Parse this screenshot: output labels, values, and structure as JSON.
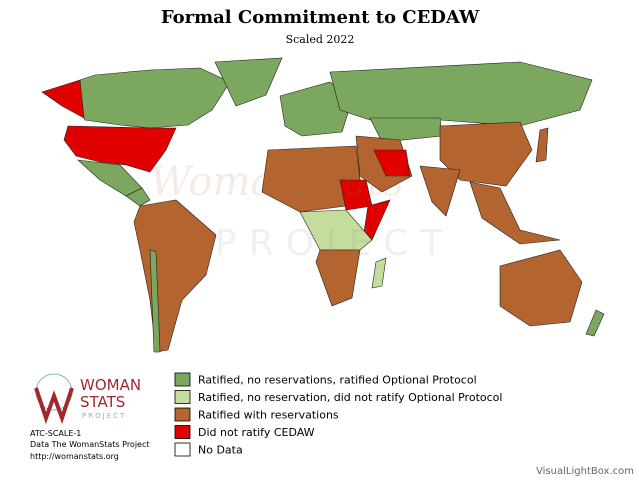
{
  "header": {
    "title": "Formal Commitment to CEDAW",
    "subtitle": "Scaled 2022"
  },
  "legend": {
    "items": [
      {
        "label": "Ratified, no reservations, ratified Optional Protocol",
        "color": "#7ba75f"
      },
      {
        "label": "Ratified, no reservation, did not ratify Optional Protocol",
        "color": "#c5dd9c"
      },
      {
        "label": "Ratified with reservations",
        "color": "#b3642f"
      },
      {
        "label": "Did not ratify CEDAW",
        "color": "#e00000"
      },
      {
        "label": "No Data",
        "color": "#ffffff"
      }
    ]
  },
  "logo": {
    "line1": "WOMAN",
    "line2": "STATS",
    "line3": "PROJECT"
  },
  "source": {
    "code": "ATC-SCALE-1",
    "credit": "Data The WomanStats Project",
    "url": "http://womanstats.org"
  },
  "watermark": {
    "line1": "WomanStats",
    "line2": "PROJECT"
  },
  "footer": {
    "credit": "VisualLightBox.com"
  }
}
